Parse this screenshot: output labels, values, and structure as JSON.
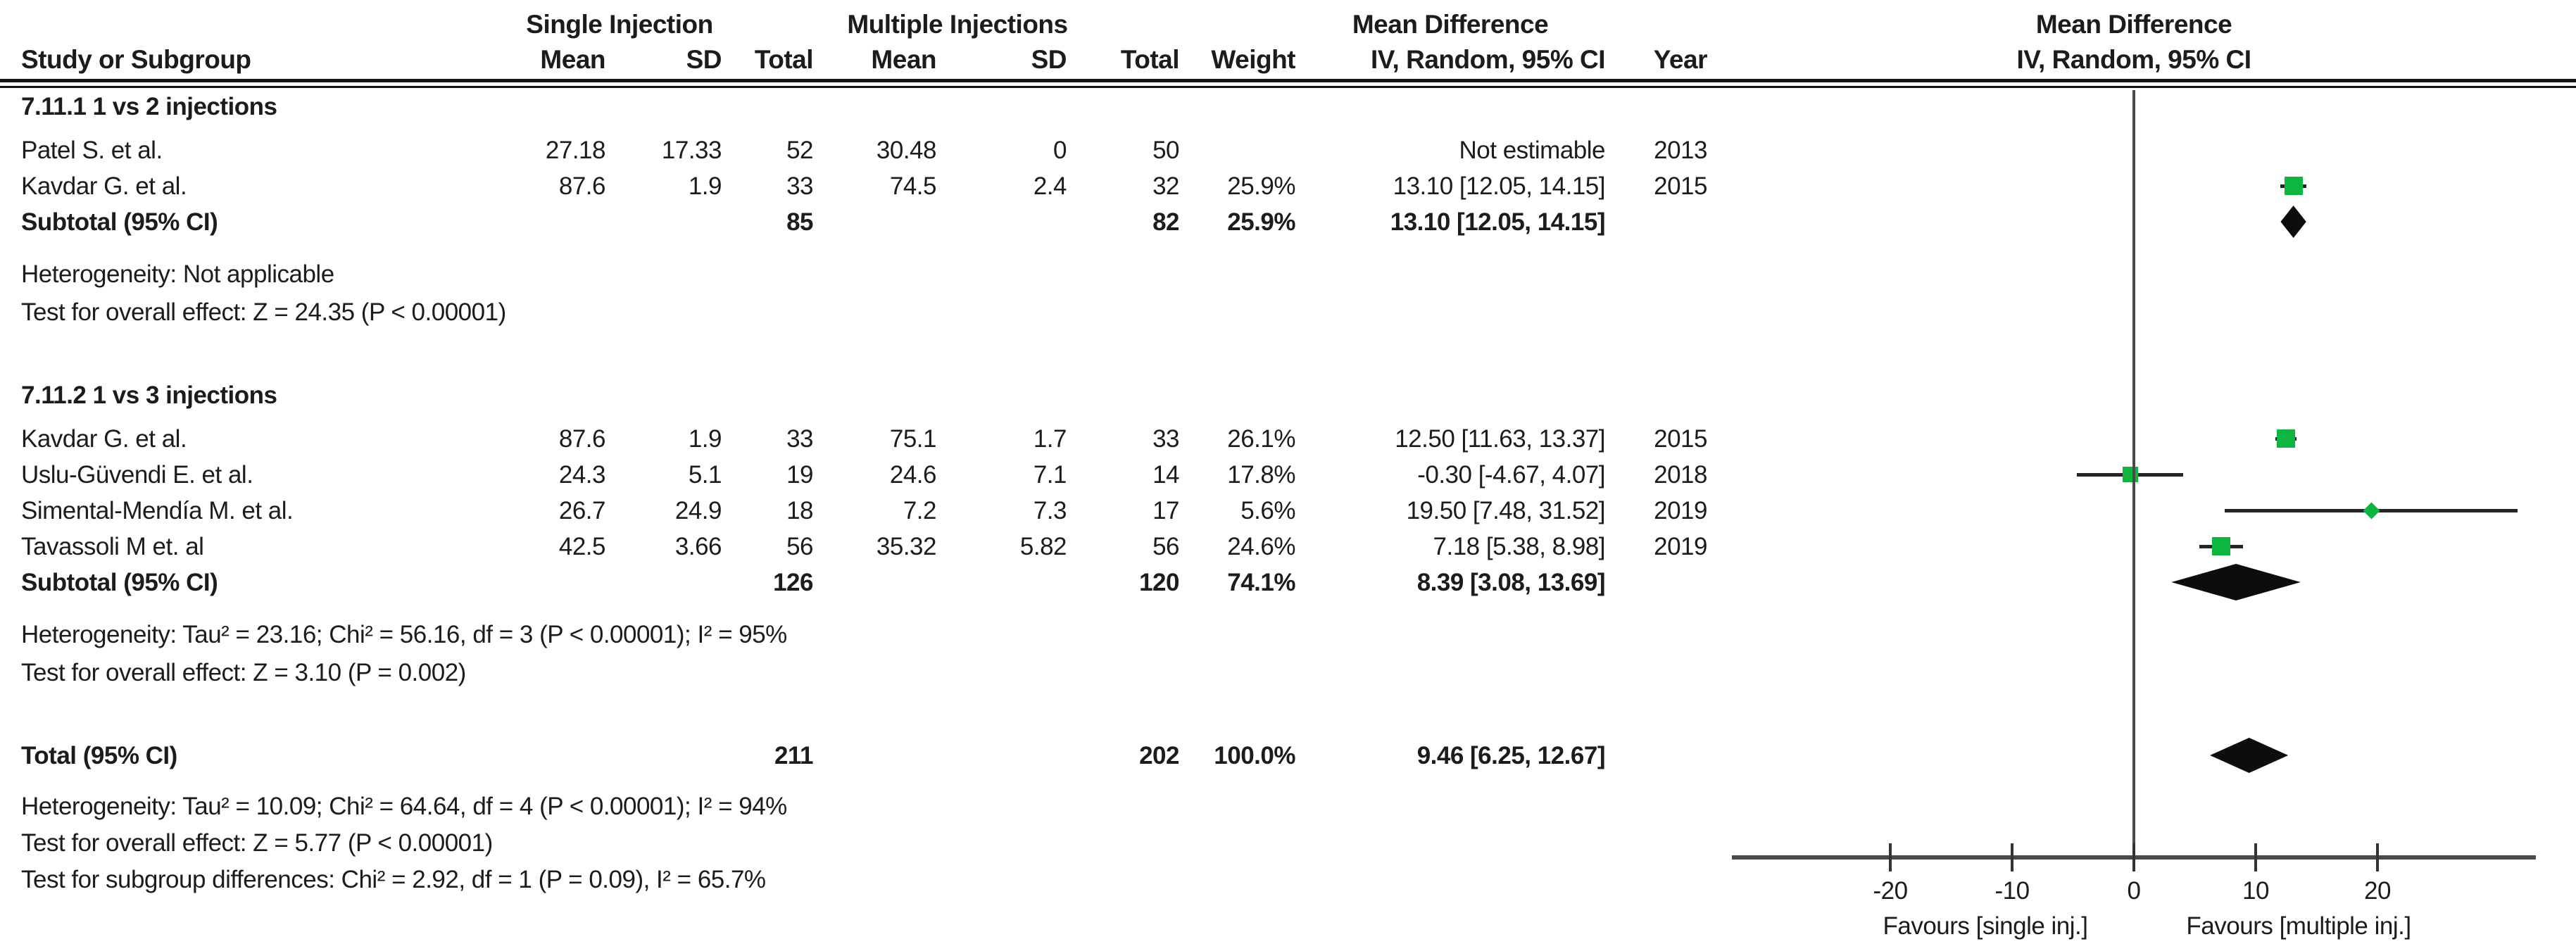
{
  "header": {
    "study": "Study or Subgroup",
    "group1": "Single Injection",
    "group2": "Multiple Injections",
    "mean": "Mean",
    "sd": "SD",
    "total": "Total",
    "weight": "Weight",
    "md_col_line1": "Mean Difference",
    "md_col_line2": "IV, Random, 95% CI",
    "year": "Year",
    "plot_line1": "Mean Difference",
    "plot_line2": "IV, Random, 95% CI"
  },
  "colors": {
    "marker_green": "#0fb541",
    "diamond_black": "#0d0d0d",
    "line_gray": "#4a4a4a",
    "ci_black": "#262626"
  },
  "chart_data": {
    "type": "forest",
    "effect_measure": "Mean Difference, IV, Random, 95% CI",
    "axis": {
      "ticks": [
        -20,
        -10,
        0,
        10,
        20
      ],
      "xlim": [
        -33,
        33
      ],
      "favours_left": "Favours [single inj.]",
      "favours_right": "Favours [multiple inj.]"
    },
    "subgroups": [
      {
        "label": "7.11.1 1 vs 2 injections",
        "studies": [
          {
            "name": "Patel S. et al.",
            "mean1": "27.18",
            "sd1": "17.33",
            "total1": "52",
            "mean2": "30.48",
            "sd2": "0",
            "total2": "50",
            "weight": "",
            "ci_text": "Not estimable",
            "year": "2013",
            "estimable": false
          },
          {
            "name": "Kavdar G. et al.",
            "mean1": "87.6",
            "sd1": "1.9",
            "total1": "33",
            "mean2": "74.5",
            "sd2": "2.4",
            "total2": "32",
            "weight": "25.9%",
            "ci_text": "13.10 [12.05, 14.15]",
            "year": "2015",
            "estimable": true,
            "md": 13.1,
            "lo": 12.05,
            "hi": 14.15,
            "wpct": 25.9
          }
        ],
        "subtotal": {
          "label": "Subtotal (95% CI)",
          "total1": "85",
          "total2": "82",
          "weight": "25.9%",
          "ci_text": "13.10 [12.05, 14.15]",
          "md": 13.1,
          "lo": 12.05,
          "hi": 14.15
        },
        "heterogeneity": "Heterogeneity: Not applicable",
        "overall_effect": "Test for overall effect: Z = 24.35 (P < 0.00001)"
      },
      {
        "label": "7.11.2 1 vs 3 injections",
        "studies": [
          {
            "name": "Kavdar G. et al.",
            "mean1": "87.6",
            "sd1": "1.9",
            "total1": "33",
            "mean2": "75.1",
            "sd2": "1.7",
            "total2": "33",
            "weight": "26.1%",
            "ci_text": "12.50 [11.63, 13.37]",
            "year": "2015",
            "estimable": true,
            "md": 12.5,
            "lo": 11.63,
            "hi": 13.37,
            "wpct": 26.1
          },
          {
            "name": "Uslu-Güvendi E. et al.",
            "mean1": "24.3",
            "sd1": "5.1",
            "total1": "19",
            "mean2": "24.6",
            "sd2": "7.1",
            "total2": "14",
            "weight": "17.8%",
            "ci_text": "-0.30 [-4.67, 4.07]",
            "year": "2018",
            "estimable": true,
            "md": -0.3,
            "lo": -4.67,
            "hi": 4.07,
            "wpct": 17.8
          },
          {
            "name": "Simental-Mendía M. et al.",
            "mean1": "26.7",
            "sd1": "24.9",
            "total1": "18",
            "mean2": "7.2",
            "sd2": "7.3",
            "total2": "17",
            "weight": "5.6%",
            "ci_text": "19.50 [7.48, 31.52]",
            "year": "2019",
            "estimable": true,
            "md": 19.5,
            "lo": 7.48,
            "hi": 31.52,
            "wpct": 5.6
          },
          {
            "name": "Tavassoli M et. al",
            "mean1": "42.5",
            "sd1": "3.66",
            "total1": "56",
            "mean2": "35.32",
            "sd2": "5.82",
            "total2": "56",
            "weight": "24.6%",
            "ci_text": "7.18 [5.38, 8.98]",
            "year": "2019",
            "estimable": true,
            "md": 7.18,
            "lo": 5.38,
            "hi": 8.98,
            "wpct": 24.6
          }
        ],
        "subtotal": {
          "label": "Subtotal (95% CI)",
          "total1": "126",
          "total2": "120",
          "weight": "74.1%",
          "ci_text": "8.39 [3.08, 13.69]",
          "md": 8.39,
          "lo": 3.08,
          "hi": 13.69
        },
        "heterogeneity": "Heterogeneity: Tau² = 23.16; Chi² = 56.16, df = 3 (P < 0.00001); I² = 95%",
        "overall_effect": "Test for overall effect: Z = 3.10 (P = 0.002)"
      }
    ],
    "total": {
      "label": "Total (95% CI)",
      "total1": "211",
      "total2": "202",
      "weight": "100.0%",
      "ci_text": "9.46 [6.25, 12.67]",
      "md": 9.46,
      "lo": 6.25,
      "hi": 12.67
    },
    "footer": [
      "Heterogeneity: Tau² = 10.09; Chi² = 64.64, df = 4 (P < 0.00001); I² = 94%",
      "Test for overall effect: Z = 5.77 (P < 0.00001)",
      "Test for subgroup differences: Chi² = 2.92, df = 1 (P = 0.09), I² = 65.7%"
    ]
  }
}
